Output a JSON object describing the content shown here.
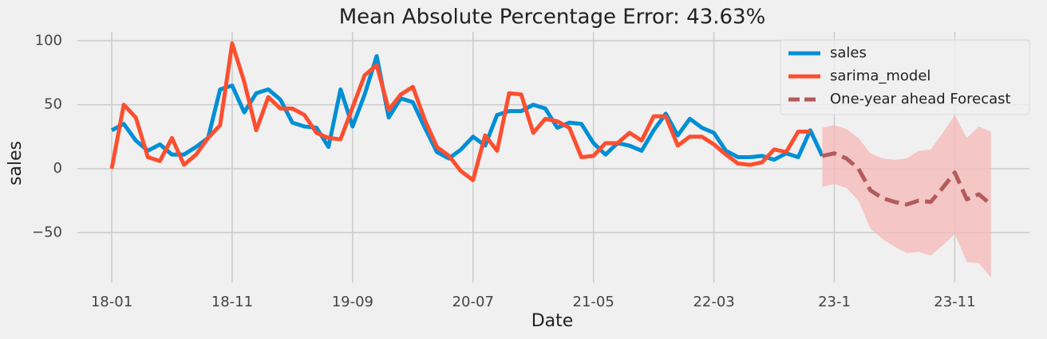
{
  "chart_data": {
    "type": "line",
    "title": "Mean Absolute Percentage Error: 43.63%",
    "xlabel": "Date",
    "ylabel": "sales",
    "xlim": [
      -2.85,
      76.2
    ],
    "ylim": [
      -89,
      107
    ],
    "xticks": [
      {
        "value": 0,
        "label": "18-01"
      },
      {
        "value": 10,
        "label": "18-11"
      },
      {
        "value": 20,
        "label": "19-09"
      },
      {
        "value": 30,
        "label": "20-07"
      },
      {
        "value": 40,
        "label": "21-05"
      },
      {
        "value": 50,
        "label": "22-03"
      },
      {
        "value": 60,
        "label": "23-1"
      },
      {
        "value": 70,
        "label": "23-11"
      }
    ],
    "yticks": [
      {
        "value": -50,
        "label": "−50"
      },
      0,
      50,
      100
    ],
    "grid": true,
    "legend": "upper right",
    "series": [
      {
        "name": "sales",
        "color": "#008fd5",
        "dash": false,
        "x": [
          0,
          1,
          2,
          3,
          4,
          5,
          6,
          7,
          8,
          9,
          10,
          11,
          12,
          13,
          14,
          15,
          16,
          17,
          18,
          19,
          20,
          21,
          22,
          23,
          24,
          25,
          26,
          27,
          28,
          29,
          30,
          31,
          32,
          33,
          34,
          35,
          36,
          37,
          38,
          39,
          40,
          41,
          42,
          43,
          44,
          45,
          46,
          47,
          48,
          49,
          50,
          51,
          52,
          53,
          54,
          55,
          56,
          57,
          58,
          59
        ],
        "values": [
          30,
          35,
          22,
          14,
          19,
          11,
          11,
          17,
          24,
          62,
          65,
          44,
          59,
          62,
          54,
          36,
          33,
          32,
          17,
          62,
          33,
          58,
          88,
          40,
          55,
          52,
          32,
          13,
          8,
          15,
          25,
          18,
          42,
          45,
          45,
          50,
          47,
          32,
          36,
          35,
          20,
          11,
          20,
          18,
          14,
          30,
          43,
          26,
          39,
          32,
          28,
          14,
          9,
          9,
          10,
          7,
          12,
          9,
          30,
          10
        ]
      },
      {
        "name": "sarima_model",
        "color": "#fc4f30",
        "dash": false,
        "x": [
          0,
          1,
          2,
          3,
          4,
          5,
          6,
          7,
          8,
          9,
          10,
          11,
          12,
          13,
          14,
          15,
          16,
          17,
          18,
          19,
          20,
          21,
          22,
          23,
          24,
          25,
          26,
          27,
          28,
          29,
          30,
          31,
          32,
          33,
          34,
          35,
          36,
          37,
          38,
          39,
          40,
          41,
          42,
          43,
          44,
          45,
          46,
          47,
          48,
          49,
          50,
          51,
          52,
          53,
          54,
          55,
          56,
          57,
          58
        ],
        "values": [
          0,
          50,
          40,
          9,
          6,
          24,
          3,
          11,
          24,
          34,
          98,
          68,
          30,
          56,
          47,
          47,
          42,
          28,
          24,
          23,
          48,
          73,
          81,
          46,
          58,
          64,
          38,
          17,
          10,
          -2,
          -9,
          26,
          14,
          59,
          58,
          28,
          39,
          37,
          32,
          9,
          10,
          20,
          20,
          28,
          22,
          41,
          41,
          18,
          25,
          25,
          19,
          11,
          4,
          3,
          5,
          15,
          13,
          29,
          29
        ]
      },
      {
        "name": "One-year ahead Forecast",
        "color": "#b35a5a",
        "dash": true,
        "band_color": "#f5b8b8",
        "x": [
          59,
          60,
          61,
          62,
          63,
          64,
          65,
          66,
          67,
          68,
          69,
          70,
          71,
          72,
          73
        ],
        "values": [
          10,
          12,
          8,
          0,
          -17,
          -23,
          -26,
          -28,
          -25,
          -26,
          -15,
          -3,
          -24,
          -20,
          -28
        ],
        "lower": [
          -14,
          -12,
          -15,
          -25,
          -47,
          -55,
          -61,
          -66,
          -65,
          -68,
          -60,
          -51,
          -73,
          -74,
          -85
        ],
        "upper": [
          32,
          34,
          31,
          24,
          12,
          8,
          7,
          8,
          14,
          15,
          28,
          42,
          24,
          33,
          29
        ]
      }
    ]
  }
}
